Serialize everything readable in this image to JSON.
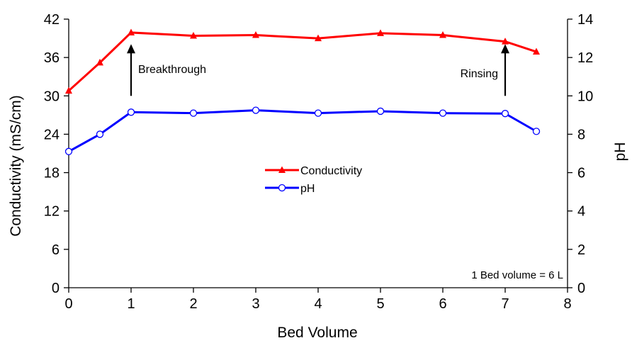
{
  "chart_data": {
    "type": "line",
    "xlabel": "Bed Volume",
    "ylabel_left": "Conductivity (mS/cm)",
    "ylabel_right": "pH",
    "xlim": [
      0,
      8
    ],
    "ylim_left": [
      0,
      42
    ],
    "ylim_right": [
      0,
      14
    ],
    "x_ticks": [
      "0",
      "1",
      "2",
      "3",
      "4",
      "5",
      "6",
      "7",
      "8"
    ],
    "y_left_ticks": [
      "0",
      "6",
      "12",
      "18",
      "24",
      "30",
      "36",
      "42"
    ],
    "y_right_ticks": [
      "0",
      "2",
      "4",
      "6",
      "8",
      "10",
      "12",
      "14"
    ],
    "grid": false,
    "legend_position": "center",
    "series": [
      {
        "name": "Conductivity",
        "axis": "left",
        "color": "#ff0000",
        "marker": "filled-triangle",
        "x": [
          0,
          0.5,
          1,
          2,
          3,
          4,
          5,
          6,
          7,
          7.5
        ],
        "y": [
          30.8,
          35.2,
          39.9,
          39.4,
          39.5,
          39.0,
          39.8,
          39.5,
          38.5,
          36.9
        ]
      },
      {
        "name": "pH",
        "axis": "right",
        "color": "#0000ff",
        "marker": "open-circle",
        "x": [
          0,
          0.5,
          1,
          2,
          3,
          4,
          5,
          6,
          7,
          7.5
        ],
        "y": [
          7.1,
          8.0,
          9.15,
          9.1,
          9.25,
          9.1,
          9.2,
          9.1,
          9.08,
          8.15
        ]
      }
    ],
    "annotations": [
      {
        "text": "Breakthrough",
        "x": 1,
        "arrow_from": 10.0,
        "arrow_to": 12.7
      },
      {
        "text": "Rinsing",
        "x": 7,
        "arrow_from": 10.0,
        "arrow_to": 12.7
      }
    ],
    "note": "1 Bed volume = 6 L"
  }
}
